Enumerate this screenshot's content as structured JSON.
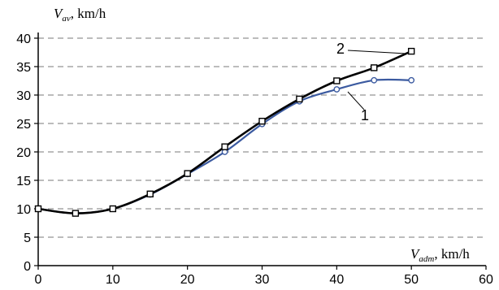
{
  "chart_data": {
    "type": "line",
    "title": "",
    "xlim": [
      0,
      60
    ],
    "ylim": [
      0,
      40
    ],
    "x_ticks": [
      "0",
      "10",
      "20",
      "30",
      "40",
      "50",
      "60"
    ],
    "y_ticks": [
      "0",
      "5",
      "10",
      "15",
      "20",
      "25",
      "30",
      "35",
      "40"
    ],
    "grid": "horizontal dashed",
    "ylabel": {
      "main": "V",
      "sub": "av",
      "unit": ", km/h"
    },
    "xlabel": {
      "main": "V",
      "sub": "adm",
      "unit": ", km/h"
    },
    "series": [
      {
        "name": "1",
        "color": "#3b5aa0",
        "marker": "circle",
        "x": [
          0,
          5,
          10,
          15,
          20,
          25,
          30,
          35,
          40,
          45,
          50
        ],
        "y": [
          10,
          9.2,
          10,
          12.5,
          16.1,
          20.0,
          24.9,
          28.9,
          31.0,
          32.6,
          32.6
        ]
      },
      {
        "name": "2",
        "color": "#000000",
        "marker": "square",
        "x": [
          0,
          5,
          10,
          15,
          20,
          25,
          30,
          35,
          40,
          45,
          50
        ],
        "y": [
          10,
          9.2,
          10,
          12.6,
          16.2,
          20.9,
          25.4,
          29.3,
          32.5,
          34.8,
          37.7
        ]
      }
    ]
  }
}
